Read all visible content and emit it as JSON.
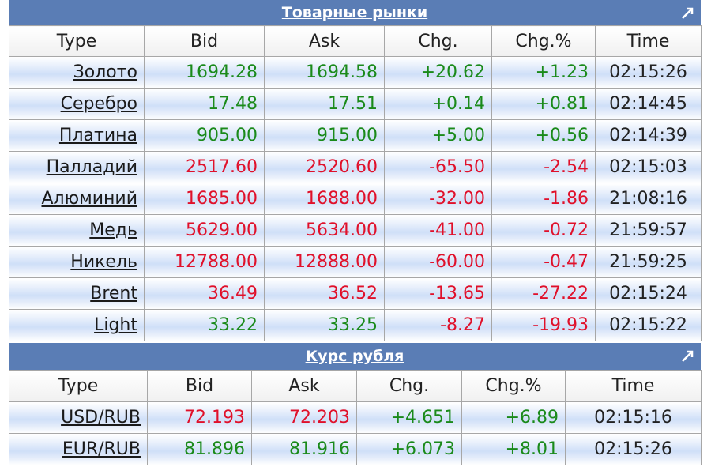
{
  "commodities": {
    "title": "Товарные рынки",
    "headers": [
      "Type",
      "Bid",
      "Ask",
      "Chg.",
      "Chg.%",
      "Time"
    ],
    "rows": [
      {
        "type": "Золото",
        "bid": "1694.28",
        "ask": "1694.58",
        "chg": "+20.62",
        "pct": "+1.23",
        "time": "02:15:26",
        "bid_dir": "pos",
        "chg_dir": "pos"
      },
      {
        "type": "Серебро",
        "bid": "17.48",
        "ask": "17.51",
        "chg": "+0.14",
        "pct": "+0.81",
        "time": "02:14:45",
        "bid_dir": "pos",
        "chg_dir": "pos"
      },
      {
        "type": "Платина",
        "bid": "905.00",
        "ask": "915.00",
        "chg": "+5.00",
        "pct": "+0.56",
        "time": "02:14:39",
        "bid_dir": "pos",
        "chg_dir": "pos"
      },
      {
        "type": "Палладий",
        "bid": "2517.60",
        "ask": "2520.60",
        "chg": "-65.50",
        "pct": "-2.54",
        "time": "02:15:03",
        "bid_dir": "neg",
        "chg_dir": "neg"
      },
      {
        "type": "Алюминий",
        "bid": "1685.00",
        "ask": "1688.00",
        "chg": "-32.00",
        "pct": "-1.86",
        "time": "21:08:16",
        "bid_dir": "neg",
        "chg_dir": "neg"
      },
      {
        "type": "Медь",
        "bid": "5629.00",
        "ask": "5634.00",
        "chg": "-41.00",
        "pct": "-0.72",
        "time": "21:59:57",
        "bid_dir": "neg",
        "chg_dir": "neg"
      },
      {
        "type": "Никель",
        "bid": "12788.00",
        "ask": "12888.00",
        "chg": "-60.00",
        "pct": "-0.47",
        "time": "21:59:25",
        "bid_dir": "neg",
        "chg_dir": "neg"
      },
      {
        "type": "Brent",
        "bid": "36.49",
        "ask": "36.52",
        "chg": "-13.65",
        "pct": "-27.22",
        "time": "02:15:24",
        "bid_dir": "neg",
        "chg_dir": "neg"
      },
      {
        "type": "Light",
        "bid": "33.22",
        "ask": "33.25",
        "chg": "-8.27",
        "pct": "-19.93",
        "time": "02:15:22",
        "bid_dir": "pos",
        "chg_dir": "neg"
      }
    ]
  },
  "ruble": {
    "title": "Курс рубля",
    "headers": [
      "Type",
      "Bid",
      "Ask",
      "Chg.",
      "Chg.%",
      "Time"
    ],
    "rows": [
      {
        "type": "USD/RUB",
        "bid": "72.193",
        "ask": "72.203",
        "chg": "+4.651",
        "pct": "+6.89",
        "time": "02:15:16",
        "bid_dir": "neg",
        "chg_dir": "pos"
      },
      {
        "type": "EUR/RUB",
        "bid": "81.896",
        "ask": "81.916",
        "chg": "+6.073",
        "pct": "+8.01",
        "time": "02:15:26",
        "bid_dir": "pos",
        "chg_dir": "pos"
      }
    ]
  },
  "colors": {
    "header_bg": "#5a7db5",
    "positive": "#1a8a1a",
    "negative": "#e0102a"
  }
}
